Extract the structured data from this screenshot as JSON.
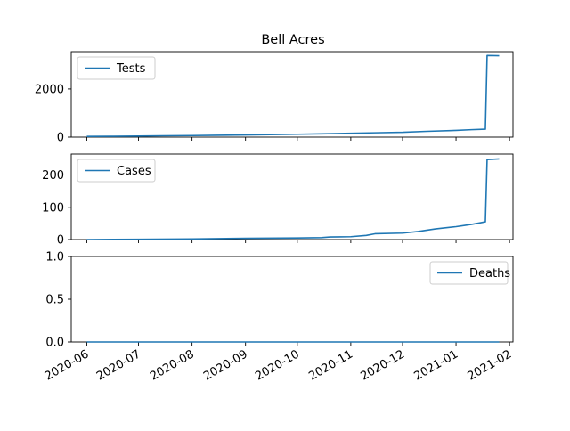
{
  "chart_data": [
    {
      "type": "line",
      "title": "Bell Acres",
      "xlabel": "",
      "ylabel": "",
      "ylim": [
        0,
        3550
      ],
      "yticks": [
        0,
        2000
      ],
      "legend": "top-left",
      "series": [
        {
          "name": "Tests",
          "color": "#1f77b4",
          "points": [
            [
              "2020-06-01",
              30
            ],
            [
              "2020-06-15",
              35
            ],
            [
              "2020-07-01",
              45
            ],
            [
              "2020-07-15",
              55
            ],
            [
              "2020-08-01",
              65
            ],
            [
              "2020-08-15",
              75
            ],
            [
              "2020-09-01",
              90
            ],
            [
              "2020-09-15",
              105
            ],
            [
              "2020-10-01",
              120
            ],
            [
              "2020-10-15",
              135
            ],
            [
              "2020-11-01",
              160
            ],
            [
              "2020-11-15",
              180
            ],
            [
              "2020-12-01",
              200
            ],
            [
              "2020-12-15",
              240
            ],
            [
              "2021-01-01",
              280
            ],
            [
              "2021-01-10",
              310
            ],
            [
              "2021-01-18",
              330
            ],
            [
              "2021-01-19",
              3390
            ],
            [
              "2021-01-26",
              3380
            ]
          ]
        }
      ]
    },
    {
      "type": "line",
      "title": "",
      "xlabel": "",
      "ylabel": "",
      "ylim": [
        0,
        265
      ],
      "yticks": [
        0,
        100,
        200
      ],
      "legend": "top-left",
      "series": [
        {
          "name": "Cases",
          "color": "#1f77b4",
          "points": [
            [
              "2020-06-01",
              0
            ],
            [
              "2020-07-01",
              1
            ],
            [
              "2020-08-01",
              2
            ],
            [
              "2020-09-01",
              4
            ],
            [
              "2020-10-01",
              5
            ],
            [
              "2020-10-15",
              6
            ],
            [
              "2020-10-20",
              8
            ],
            [
              "2020-11-01",
              9
            ],
            [
              "2020-11-10",
              13
            ],
            [
              "2020-11-15",
              18
            ],
            [
              "2020-12-01",
              20
            ],
            [
              "2020-12-10",
              25
            ],
            [
              "2020-12-20",
              33
            ],
            [
              "2021-01-01",
              40
            ],
            [
              "2021-01-10",
              47
            ],
            [
              "2021-01-15",
              52
            ],
            [
              "2021-01-18",
              55
            ],
            [
              "2021-01-19",
              248
            ],
            [
              "2021-01-26",
              250
            ]
          ]
        }
      ]
    },
    {
      "type": "line",
      "title": "",
      "xlabel": "",
      "ylabel": "",
      "ylim": [
        0,
        1
      ],
      "yticks": [
        0.0,
        0.5,
        1.0
      ],
      "legend": "top-right",
      "series": [
        {
          "name": "Deaths",
          "color": "#1f77b4",
          "points": [
            [
              "2020-06-01",
              0
            ],
            [
              "2021-01-26",
              0
            ]
          ]
        }
      ]
    }
  ],
  "x_axis": {
    "range": [
      "2020-05-23",
      "2021-02-03"
    ],
    "ticks": [
      "2020-06",
      "2020-07",
      "2020-08",
      "2020-09",
      "2020-10",
      "2020-11",
      "2020-12",
      "2021-01",
      "2021-02"
    ]
  }
}
